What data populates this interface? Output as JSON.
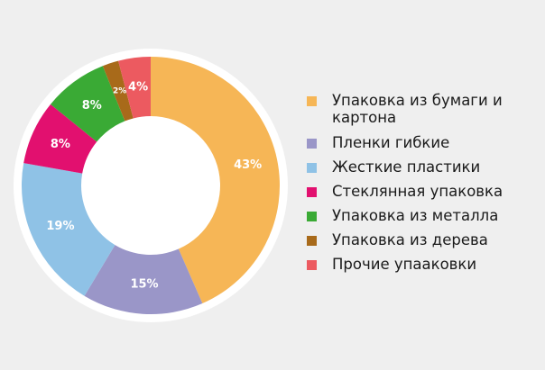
{
  "chart_data": {
    "type": "pie",
    "variant": "donut",
    "title": "",
    "legend_position": "right",
    "series": [
      {
        "name": "Упаковка из бумаги и картона",
        "value": 43,
        "label": "43%",
        "color": "#f6b656"
      },
      {
        "name": "Пленки гибкие",
        "value": 15,
        "label": "15%",
        "color": "#9a96c8"
      },
      {
        "name": "Жесткие пластики",
        "value": 19,
        "label": "19%",
        "color": "#8fc2e6"
      },
      {
        "name": "Стеклянная упаковка",
        "value": 8,
        "label": "8%",
        "color": "#e2106f"
      },
      {
        "name": "Упаковка из металла",
        "value": 8,
        "label": "8%",
        "color": "#3aaa35"
      },
      {
        "name": "Упаковка из дерева",
        "value": 2,
        "label": "2%",
        "color": "#a86a1a"
      },
      {
        "name": "Прочие упааковки",
        "value": 4,
        "label": "4%",
        "color": "#ec5a60"
      }
    ]
  },
  "legend": {
    "items": [
      {
        "label": "Упаковка из бумаги и картона",
        "color": "#f6b656"
      },
      {
        "label": "Пленки гибкие",
        "color": "#9a96c8"
      },
      {
        "label": "Жесткие пластики",
        "color": "#8fc2e6"
      },
      {
        "label": "Стеклянная упаковка",
        "color": "#e2106f"
      },
      {
        "label": "Упаковка из металла",
        "color": "#3aaa35"
      },
      {
        "label": "Упаковка из дерева",
        "color": "#a86a1a"
      },
      {
        "label": "Прочие упааковки",
        "color": "#ec5a60"
      }
    ]
  }
}
